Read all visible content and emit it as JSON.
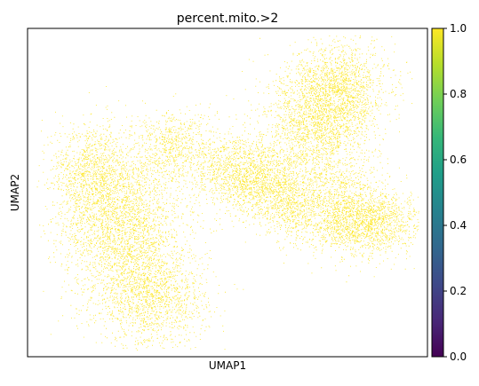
{
  "chart_data": {
    "type": "scatter",
    "title": "percent.mito.>2",
    "xlabel": "UMAP1",
    "ylabel": "UMAP2",
    "grid": false,
    "legend": "colorbar-right",
    "point_color": "#fde725",
    "colorbar": {
      "colormap": "viridis",
      "range": [
        0.0,
        1.0
      ],
      "ticks": [
        "0.0",
        "0.2",
        "0.4",
        "0.6",
        "0.8",
        "1.0"
      ],
      "stops": [
        "#440154",
        "#482878",
        "#3e4989",
        "#31688e",
        "#26828e",
        "#1f9e89",
        "#35b779",
        "#6ece58",
        "#b5de2b",
        "#fde725"
      ]
    },
    "clusters": [
      {
        "cx": 0.24,
        "cy": 0.4,
        "sx": 0.075,
        "sy": 0.115,
        "n": 2600
      },
      {
        "cx": 0.31,
        "cy": 0.18,
        "sx": 0.07,
        "sy": 0.075,
        "n": 1500
      },
      {
        "cx": 0.16,
        "cy": 0.56,
        "sx": 0.05,
        "sy": 0.08,
        "n": 1100
      },
      {
        "cx": 0.36,
        "cy": 0.64,
        "sx": 0.05,
        "sy": 0.055,
        "n": 700
      },
      {
        "cx": 0.52,
        "cy": 0.57,
        "sx": 0.055,
        "sy": 0.06,
        "n": 900
      },
      {
        "cx": 0.6,
        "cy": 0.53,
        "sx": 0.06,
        "sy": 0.055,
        "n": 1000
      },
      {
        "cx": 0.72,
        "cy": 0.7,
        "sx": 0.065,
        "sy": 0.085,
        "n": 1700
      },
      {
        "cx": 0.78,
        "cy": 0.82,
        "sx": 0.06,
        "sy": 0.07,
        "n": 1500
      },
      {
        "cx": 0.78,
        "cy": 0.48,
        "sx": 0.055,
        "sy": 0.07,
        "n": 800
      },
      {
        "cx": 0.82,
        "cy": 0.4,
        "sx": 0.06,
        "sy": 0.05,
        "n": 1000
      },
      {
        "cx": 0.9,
        "cy": 0.42,
        "sx": 0.05,
        "sy": 0.05,
        "n": 500
      },
      {
        "cx": 0.66,
        "cy": 0.45,
        "sx": 0.04,
        "sy": 0.05,
        "n": 500
      }
    ]
  }
}
